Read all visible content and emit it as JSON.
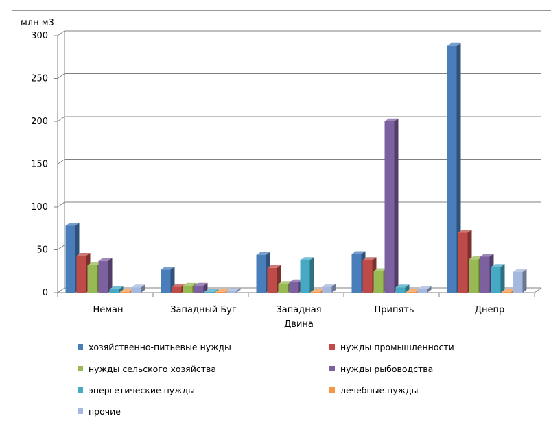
{
  "chart_data": {
    "type": "bar",
    "three_d": true,
    "title": "",
    "ylabel": "млн м3",
    "xlabel": "",
    "ylim": [
      0,
      300
    ],
    "yticks": [
      0,
      50,
      100,
      150,
      200,
      250,
      300
    ],
    "grid": true,
    "legend_position": "bottom",
    "categories": [
      [
        "Неман"
      ],
      [
        "Западный Буг"
      ],
      [
        "Западная",
        "Двина"
      ],
      [
        "Припять"
      ],
      [
        "Днепр"
      ]
    ],
    "series": [
      {
        "name": "хозяйственно-питьевые нужды",
        "color": "#4a7ebb",
        "values": [
          78,
          27,
          44,
          45,
          288
        ]
      },
      {
        "name": "нужды промышленности",
        "color": "#be4b48",
        "values": [
          43,
          7,
          29,
          38,
          70
        ]
      },
      {
        "name": "нужды сельского хозяйства",
        "color": "#98b954",
        "values": [
          32,
          8,
          10,
          25,
          39
        ]
      },
      {
        "name": "нужды рыбоводства",
        "color": "#7d60a0",
        "values": [
          37,
          8,
          12,
          200,
          42
        ]
      },
      {
        "name": "энергетические нужды",
        "color": "#46aac5",
        "values": [
          4,
          1,
          38,
          6,
          30
        ]
      },
      {
        "name": "лечебные нужды",
        "color": "#f59646",
        "values": [
          1,
          1,
          1,
          1,
          1
        ]
      },
      {
        "name": "прочие",
        "color": "#a5b8dd",
        "values": [
          6,
          2,
          7,
          4,
          24
        ]
      }
    ]
  }
}
